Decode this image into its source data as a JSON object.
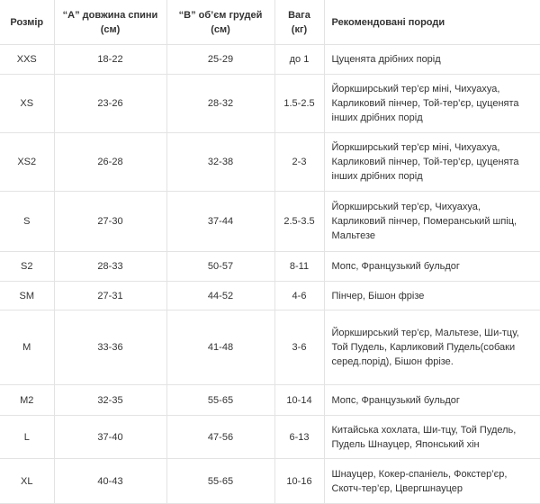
{
  "table": {
    "header": [
      "Розмір",
      "“A” довжина спини (см)",
      "“B” об’єм грудей (см)",
      "Вага (кг)",
      "Рекомендовані породи"
    ],
    "rows": [
      [
        "XXS",
        "18-22",
        "25-29",
        "до 1",
        "Цуценята дрібних порід"
      ],
      [
        "XS",
        "23-26",
        "28-32",
        "1.5-2.5",
        "Йоркширський тер’єр міні, Чихуахуа, Карликовий пінчер, Той-тер’єр, цуценята інших дрібних порід"
      ],
      [
        "XS2",
        "26-28",
        "32-38",
        "2-3",
        "Йоркширський тер’єр міні, Чихуахуа, Карликовий пінчер, Той-тер’єр, цуценята інших дрібних порід"
      ],
      [
        "S",
        "27-30",
        "37-44",
        "2.5-3.5",
        "Йоркширський тер’єр, Чихуахуа, Карликовий пінчер, Померанський шпіц, Мальтезе"
      ],
      [
        "S2",
        "28-33",
        "50-57",
        "8-11",
        "Мопс, Французький бульдог"
      ],
      [
        "SM",
        "27-31",
        "44-52",
        "4-6",
        "Пінчер, Бішон фрізе"
      ],
      [
        "M",
        "33-36",
        "41-48",
        "3-6",
        "Йоркширський тер’єр, Мальтезе, Ши-тцу, Той Пудель, Карликовий Пудель(собаки серед.порід), Бішон фрізе."
      ],
      [
        "M2",
        "32-35",
        "55-65",
        "10-14",
        "Мопс, Французький бульдог"
      ],
      [
        "L",
        "37-40",
        "47-56",
        "6-13",
        "Китайська хохлата, Ши-тцу, Той Пудель, Пудель Шнауцер, Японський хін"
      ],
      [
        "XL",
        "40-43",
        "55-65",
        "10-16",
        "Шнауцер, Кокер-спаніель, Фокстер’єр, Скотч-тер’єр, Цвергшнауцер"
      ]
    ]
  }
}
